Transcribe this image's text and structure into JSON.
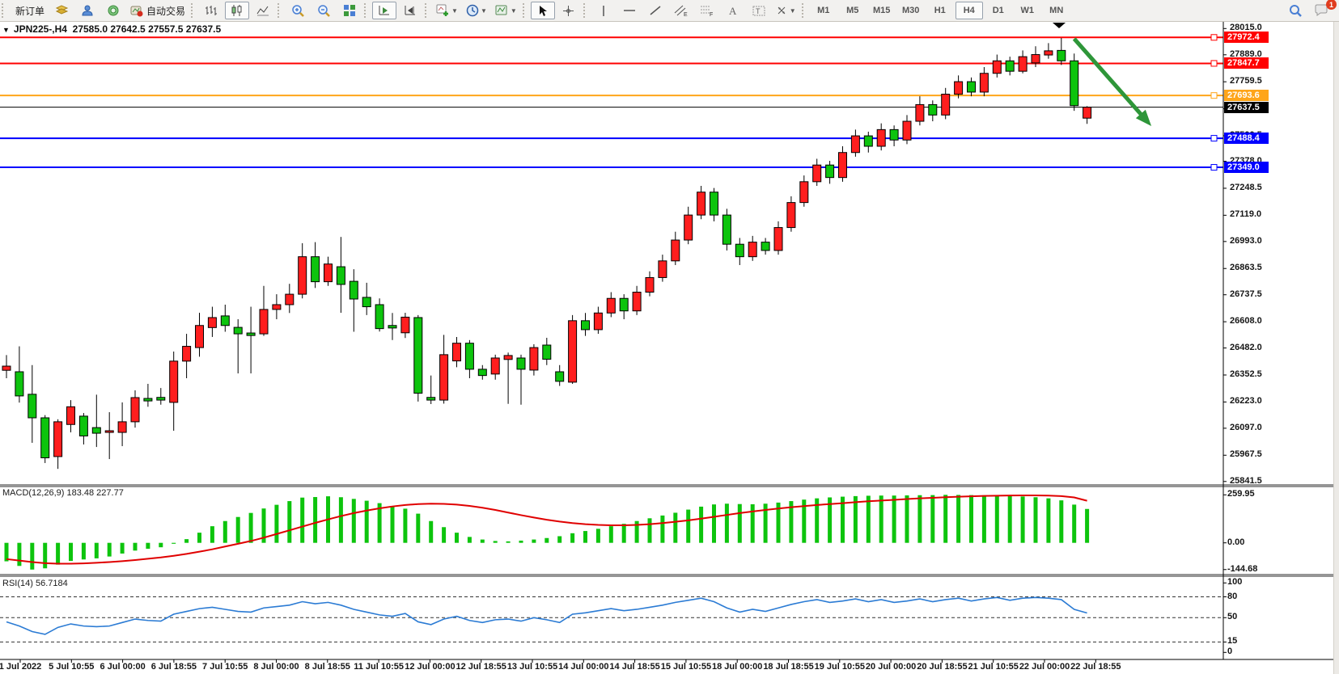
{
  "toolbar": {
    "new_order": "新订单",
    "auto_trading": "自动交易",
    "timeframes": [
      "M1",
      "M5",
      "M15",
      "M30",
      "H1",
      "H4",
      "D1",
      "W1",
      "MN"
    ],
    "active_timeframe": "H4",
    "notification_badge": "1"
  },
  "chart": {
    "symbol_title": "JPN225-,H4",
    "ohlc_text": "27585.0 27642.5 27557.5 27637.5",
    "macd_label": "MACD(12,26,9) 183.48 227.77",
    "rsi_label": "RSI(14) 56.7184"
  },
  "chart_data": {
    "type": "candlestick",
    "symbol": "JPN225-",
    "timeframe": "H4",
    "title": "JPN225-,H4 27585.0 27642.5 27557.5 27637.5",
    "last_ohlc": {
      "open": 27585.0,
      "high": 27642.5,
      "low": 27557.5,
      "close": 27637.5
    },
    "current_price": 27637.5,
    "bull_color": "#FF1E1E",
    "bear_color": "#0DC40D",
    "price_axis_ticks": [
      28015.0,
      27889.0,
      27759.5,
      27630.0,
      27500.5,
      27378.0,
      27248.5,
      27119.0,
      26993.0,
      26863.5,
      26737.5,
      26608.0,
      26482.0,
      26352.5,
      26223.0,
      26097.0,
      25967.5,
      25841.5
    ],
    "time_labels": [
      "1 Jul 2022",
      "5 Jul 10:55",
      "6 Jul 00:00",
      "6 Jul 18:55",
      "7 Jul 10:55",
      "8 Jul 00:00",
      "8 Jul 18:55",
      "11 Jul 10:55",
      "12 Jul 00:00",
      "12 Jul 18:55",
      "13 Jul 10:55",
      "14 Jul 00:00",
      "14 Jul 18:55",
      "15 Jul 10:55",
      "18 Jul 00:00",
      "18 Jul 18:55",
      "19 Jul 10:55",
      "20 Jul 00:00",
      "20 Jul 18:55",
      "21 Jul 10:55",
      "22 Jul 00:00",
      "22 Jul 18:55"
    ],
    "hlines": [
      {
        "price": 27972.4,
        "color": "#FF0000",
        "width": 2,
        "handle": true
      },
      {
        "price": 27847.7,
        "color": "#FF0000",
        "width": 2,
        "handle": true
      },
      {
        "price": 27693.6,
        "color": "#FFA519",
        "width": 2,
        "handle": true
      },
      {
        "price": 27637.5,
        "color": "#000000",
        "width": 1,
        "handle": false
      },
      {
        "price": 27488.4,
        "color": "#0000FF",
        "width": 2,
        "handle": true
      },
      {
        "price": 27349.0,
        "color": "#0000FF",
        "width": 2,
        "handle": true
      }
    ],
    "candles": [
      [
        26375,
        26448,
        26337,
        26395
      ],
      [
        26368,
        26490,
        26220,
        26252
      ],
      [
        26260,
        26400,
        26027,
        26147
      ],
      [
        26147,
        26160,
        25930,
        25955
      ],
      [
        25961,
        26140,
        25902,
        26128
      ],
      [
        26115,
        26232,
        26077,
        26200
      ],
      [
        26155,
        26170,
        26019,
        26060
      ],
      [
        26100,
        26258,
        26007,
        26073
      ],
      [
        26077,
        26174,
        25949,
        26085
      ],
      [
        26077,
        26221,
        26011,
        26128
      ],
      [
        26128,
        26279,
        26100,
        26244
      ],
      [
        26240,
        26310,
        26200,
        26228
      ],
      [
        26245,
        26290,
        26210,
        26232
      ],
      [
        26221,
        26465,
        26085,
        26419
      ],
      [
        26419,
        26550,
        26337,
        26490
      ],
      [
        26484,
        26651,
        26440,
        26590
      ],
      [
        26580,
        26680,
        26535,
        26628
      ],
      [
        26636,
        26690,
        26560,
        26590
      ],
      [
        26581,
        26620,
        26360,
        26550
      ],
      [
        26554,
        26680,
        26360,
        26542
      ],
      [
        26550,
        26780,
        26540,
        26667
      ],
      [
        26667,
        26740,
        26620,
        26690
      ],
      [
        26690,
        26790,
        26650,
        26740
      ],
      [
        26740,
        26985,
        26720,
        26920
      ],
      [
        26920,
        26990,
        26770,
        26800
      ],
      [
        26800,
        26920,
        26780,
        26885
      ],
      [
        26872,
        27015,
        26651,
        26787
      ],
      [
        26802,
        26860,
        26560,
        26717
      ],
      [
        26725,
        26795,
        26640,
        26680
      ],
      [
        26690,
        26720,
        26561,
        26575
      ],
      [
        26590,
        26650,
        26520,
        26578
      ],
      [
        26555,
        26651,
        26530,
        26630
      ],
      [
        26628,
        26640,
        26225,
        26265
      ],
      [
        26245,
        26350,
        26213,
        26232
      ],
      [
        26232,
        26545,
        26215,
        26450
      ],
      [
        26420,
        26535,
        26390,
        26505
      ],
      [
        26505,
        26520,
        26337,
        26380
      ],
      [
        26380,
        26400,
        26330,
        26350
      ],
      [
        26357,
        26450,
        26330,
        26434
      ],
      [
        26427,
        26460,
        26214,
        26446
      ],
      [
        26434,
        26450,
        26210,
        26380
      ],
      [
        26376,
        26500,
        26350,
        26484
      ],
      [
        26496,
        26531,
        26400,
        26428
      ],
      [
        26368,
        26400,
        26300,
        26322
      ],
      [
        26318,
        26640,
        26310,
        26613
      ],
      [
        26613,
        26650,
        26540,
        26570
      ],
      [
        26570,
        26680,
        26550,
        26650
      ],
      [
        26650,
        26750,
        26630,
        26720
      ],
      [
        26720,
        26740,
        26620,
        26660
      ],
      [
        26660,
        26780,
        26640,
        26750
      ],
      [
        26750,
        26850,
        26730,
        26820
      ],
      [
        26820,
        26930,
        26800,
        26900
      ],
      [
        26900,
        27040,
        26880,
        27000
      ],
      [
        27000,
        27160,
        26980,
        27120
      ],
      [
        27120,
        27260,
        27100,
        27230
      ],
      [
        27230,
        27250,
        27090,
        27120
      ],
      [
        27120,
        27150,
        26950,
        26980
      ],
      [
        26980,
        27010,
        26880,
        26920
      ],
      [
        26920,
        27020,
        26900,
        26990
      ],
      [
        26990,
        27010,
        26930,
        26950
      ],
      [
        26950,
        27090,
        26930,
        27060
      ],
      [
        27060,
        27210,
        27040,
        27180
      ],
      [
        27180,
        27310,
        27160,
        27280
      ],
      [
        27280,
        27390,
        27260,
        27360
      ],
      [
        27360,
        27380,
        27270,
        27300
      ],
      [
        27300,
        27450,
        27280,
        27420
      ],
      [
        27420,
        27530,
        27400,
        27500
      ],
      [
        27500,
        27520,
        27420,
        27450
      ],
      [
        27450,
        27560,
        27430,
        27530
      ],
      [
        27530,
        27550,
        27450,
        27480
      ],
      [
        27480,
        27600,
        27460,
        27570
      ],
      [
        27570,
        27690,
        27550,
        27650
      ],
      [
        27650,
        27670,
        27570,
        27600
      ],
      [
        27600,
        27730,
        27580,
        27700
      ],
      [
        27700,
        27790,
        27680,
        27760
      ],
      [
        27760,
        27780,
        27690,
        27710
      ],
      [
        27710,
        27830,
        27690,
        27800
      ],
      [
        27800,
        27890,
        27780,
        27860
      ],
      [
        27860,
        27880,
        27790,
        27810
      ],
      [
        27810,
        27910,
        27800,
        27880
      ],
      [
        27850,
        27930,
        27830,
        27890
      ],
      [
        27888,
        27945,
        27870,
        27908
      ],
      [
        27910,
        27970,
        27840,
        27860
      ],
      [
        27860,
        27895,
        27620,
        27645
      ],
      [
        27585,
        27642.5,
        27557.5,
        27637.5
      ]
    ],
    "macd": {
      "label": "MACD(12,26,9)",
      "current_main": 183.48,
      "current_signal": 227.77,
      "axis_ticks": [
        259.95,
        0.0,
        -144.68
      ],
      "histogram_color": "#0DC40D",
      "signal_color": "#E00000",
      "histogram": [
        -100,
        -125,
        -144.68,
        -138,
        -118,
        -98,
        -90,
        -84,
        -74,
        -58,
        -42,
        -32,
        -24,
        -5,
        20,
        55,
        90,
        118,
        140,
        162,
        186,
        206,
        226,
        245,
        248,
        252,
        247,
        238,
        228,
        215,
        200,
        185,
        158,
        118,
        85,
        55,
        32,
        18,
        10,
        8,
        12,
        18,
        26,
        36,
        52,
        64,
        76,
        90,
        103,
        118,
        133,
        148,
        163,
        180,
        196,
        208,
        212,
        210,
        209,
        212,
        218,
        226,
        234,
        241,
        246,
        250,
        253,
        255,
        256,
        256,
        257,
        258,
        258.5,
        259.95,
        259.5,
        258.5,
        257.5,
        256,
        254,
        251,
        247,
        241,
        230,
        207,
        183.48
      ],
      "signal": [
        -88,
        -96,
        -104,
        -110,
        -113,
        -113,
        -111,
        -108,
        -104,
        -99,
        -93,
        -86,
        -79,
        -70,
        -60,
        -48,
        -35,
        -20,
        -5,
        10,
        28,
        48,
        68,
        88,
        108,
        127,
        145,
        161,
        175,
        187,
        197,
        205,
        210,
        212,
        211,
        207,
        200,
        190,
        178,
        164,
        150,
        137,
        125,
        115,
        107,
        101,
        97,
        95,
        95,
        97,
        101,
        107,
        114,
        122,
        131,
        141,
        151,
        161,
        170,
        178,
        186,
        193,
        199,
        205,
        210,
        215,
        220,
        225,
        229,
        233,
        237,
        241,
        244,
        247,
        250,
        252,
        254,
        255.5,
        256.5,
        257,
        257,
        256,
        253,
        246,
        227.77
      ]
    },
    "rsi": {
      "label": "RSI(14)",
      "current": 56.7184,
      "levels": [
        80,
        50,
        15
      ],
      "axis_ticks": [
        100,
        80,
        50,
        15,
        0
      ],
      "line_color": "#2B7BD4",
      "values": [
        44,
        38,
        30,
        26,
        36,
        41,
        38,
        37,
        38,
        43,
        48,
        46,
        45,
        55,
        59,
        63,
        65,
        62,
        59,
        58,
        64,
        66,
        68,
        73,
        70,
        72,
        68,
        62,
        58,
        54,
        52,
        56,
        44,
        40,
        48,
        52,
        46,
        43,
        47,
        48,
        45,
        50,
        47,
        43,
        55,
        57,
        60,
        63,
        60,
        62,
        65,
        68,
        72,
        75,
        78,
        73,
        64,
        58,
        62,
        59,
        64,
        69,
        73,
        76,
        72,
        74,
        77,
        73,
        76,
        72,
        74,
        77,
        73,
        76,
        78,
        74,
        77,
        79,
        75,
        78,
        79,
        78,
        76,
        62,
        56.72
      ]
    },
    "annotation_arrow": {
      "from": {
        "index": 83,
        "price": 27966
      },
      "to": {
        "index": 89,
        "price": 27547
      },
      "color": "#2E9639"
    }
  }
}
